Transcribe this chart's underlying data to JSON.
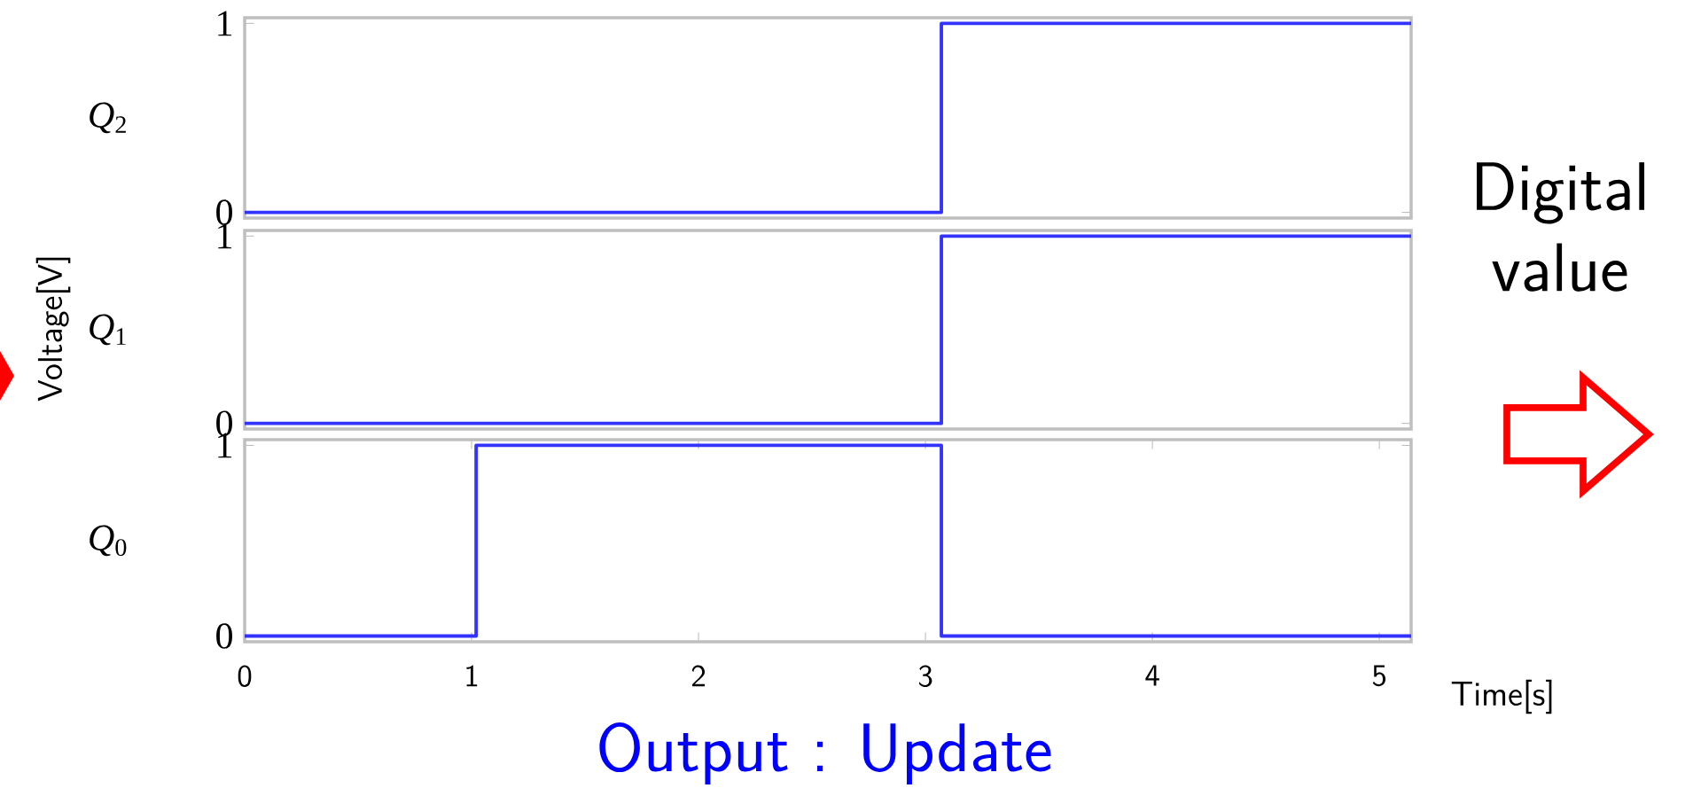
{
  "chart_data": [
    {
      "type": "step",
      "ylabel": "*Q*$_{2}$",
      "xlim": [
        0,
        5.14
      ],
      "ylim": [
        -0.03,
        1.03
      ],
      "yticks": [
        0,
        1
      ],
      "tick_labels": "y",
      "series": [
        {
          "color": "#3333ff",
          "x": [
            0,
            3.07,
            5.14
          ],
          "values": [
            0,
            1,
            1
          ]
        }
      ]
    },
    {
      "type": "step",
      "ylabel": "*Q*$_{1}$",
      "xlim": [
        0,
        5.14
      ],
      "ylim": [
        -0.03,
        1.03
      ],
      "yticks": [
        0,
        1
      ],
      "tick_labels": "y",
      "annotations": [
        "Voltage[V]"
      ],
      "series": [
        {
          "color": "#3333ff",
          "x": [
            0,
            3.07,
            5.14
          ],
          "values": [
            0,
            1,
            1
          ]
        }
      ]
    },
    {
      "type": "step",
      "ylabel": "*Q*$_{0}$",
      "xlabel": "Time[s]",
      "xlim": [
        0,
        5.14
      ],
      "ylim": [
        -0.03,
        1.03
      ],
      "xticks": [
        0,
        1,
        2,
        3,
        4,
        5
      ],
      "yticks": [
        0,
        1
      ],
      "annotations": [
        "Output : Update",
        "Digital value"
      ],
      "series": [
        {
          "color": "#3333ff",
          "x": [
            0,
            1.02,
            3.07,
            5.14
          ],
          "values": [
            0,
            1,
            0,
            0
          ]
        }
      ]
    }
  ]
}
